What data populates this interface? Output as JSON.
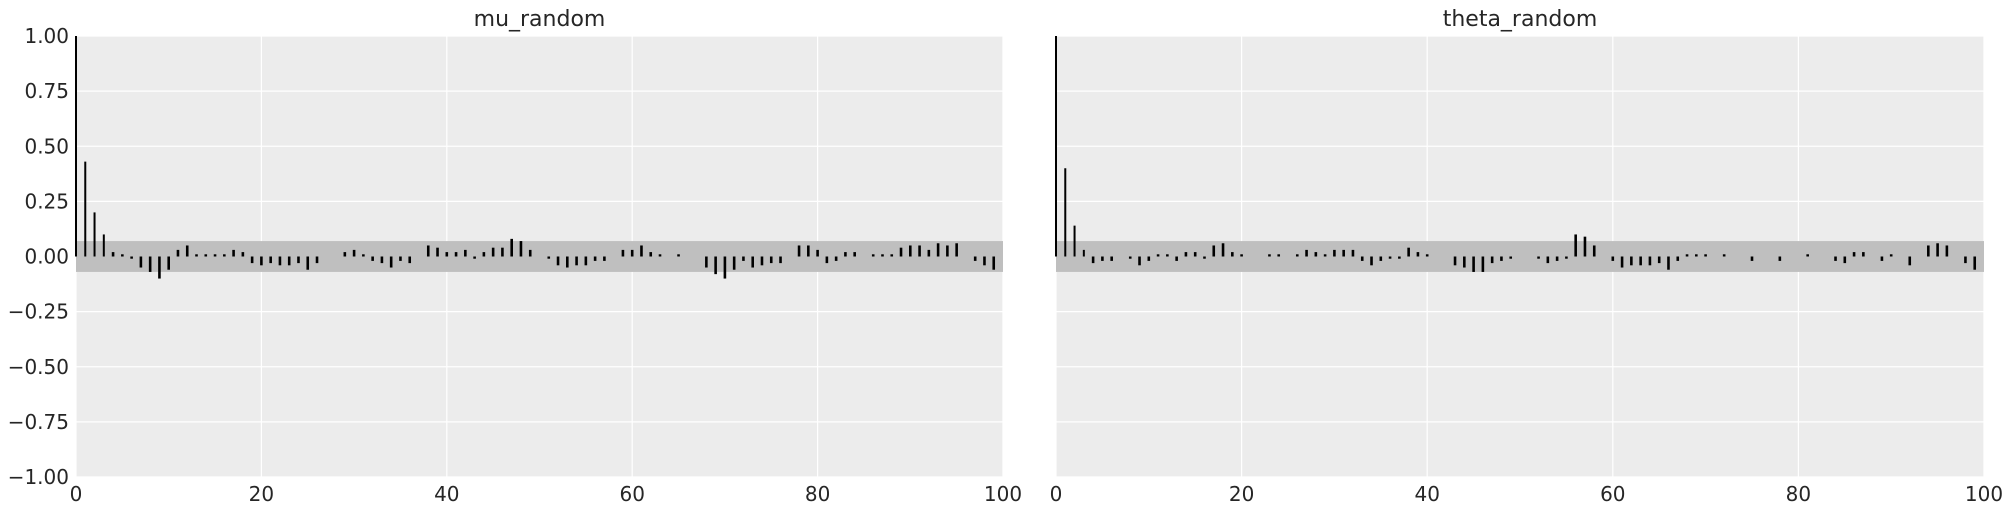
{
  "chart_data": [
    {
      "type": "bar",
      "title": "mu_random",
      "xlabel": "",
      "ylabel": "",
      "xlim": [
        0,
        100
      ],
      "ylim": [
        -1.0,
        1.0
      ],
      "xticks": [
        0,
        20,
        40,
        60,
        80,
        100
      ],
      "xtick_labels": [
        "0",
        "20",
        "40",
        "60",
        "80",
        "100"
      ],
      "yticks": [
        1.0,
        0.75,
        0.5,
        0.25,
        0.0,
        -0.25,
        -0.5,
        -0.75,
        -1.0
      ],
      "ytick_labels": [
        "1.00",
        "0.75",
        "0.50",
        "0.25",
        "0.00",
        "−0.25",
        "−0.50",
        "−0.75",
        "−1.00"
      ],
      "confidence_band": [
        -0.07,
        0.07
      ],
      "grid": true,
      "lags": [
        0,
        1,
        2,
        3,
        4,
        5,
        6,
        7,
        8,
        9,
        10,
        11,
        12,
        13,
        14,
        15,
        16,
        17,
        18,
        19,
        20,
        21,
        22,
        23,
        24,
        25,
        26,
        27,
        28,
        29,
        30,
        31,
        32,
        33,
        34,
        35,
        36,
        37,
        38,
        39,
        40,
        41,
        42,
        43,
        44,
        45,
        46,
        47,
        48,
        49,
        50,
        51,
        52,
        53,
        54,
        55,
        56,
        57,
        58,
        59,
        60,
        61,
        62,
        63,
        64,
        65,
        66,
        67,
        68,
        69,
        70,
        71,
        72,
        73,
        74,
        75,
        76,
        77,
        78,
        79,
        80,
        81,
        82,
        83,
        84,
        85,
        86,
        87,
        88,
        89,
        90,
        91,
        92,
        93,
        94,
        95,
        96,
        97,
        98,
        99
      ],
      "values": [
        1.0,
        0.43,
        0.2,
        0.1,
        0.02,
        0.01,
        -0.01,
        -0.05,
        -0.07,
        -0.1,
        -0.06,
        0.03,
        0.05,
        0.01,
        0.01,
        0.01,
        0.01,
        0.03,
        0.02,
        -0.03,
        -0.04,
        -0.03,
        -0.04,
        -0.04,
        -0.03,
        -0.06,
        -0.03,
        0.0,
        0.0,
        0.02,
        0.03,
        0.01,
        -0.02,
        -0.03,
        -0.05,
        -0.02,
        -0.03,
        0.0,
        0.05,
        0.04,
        0.02,
        0.02,
        0.03,
        -0.01,
        0.02,
        0.04,
        0.04,
        0.08,
        0.07,
        0.03,
        0.0,
        -0.01,
        -0.04,
        -0.05,
        -0.04,
        -0.04,
        -0.02,
        -0.02,
        0.0,
        0.03,
        0.03,
        0.05,
        0.02,
        0.01,
        0.0,
        0.01,
        0.0,
        0.0,
        -0.05,
        -0.08,
        -0.1,
        -0.06,
        -0.02,
        -0.05,
        -0.04,
        -0.03,
        -0.03,
        0.0,
        0.05,
        0.05,
        0.03,
        -0.03,
        -0.02,
        0.02,
        0.02,
        0.0,
        0.01,
        0.01,
        0.01,
        0.04,
        0.05,
        0.05,
        0.03,
        0.06,
        0.05,
        0.06,
        0.0,
        -0.02,
        -0.04,
        -0.06
      ]
    },
    {
      "type": "bar",
      "title": "theta_random",
      "xlabel": "",
      "ylabel": "",
      "xlim": [
        0,
        100
      ],
      "ylim": [
        -1.0,
        1.0
      ],
      "xticks": [
        0,
        20,
        40,
        60,
        80,
        100
      ],
      "xtick_labels": [
        "0",
        "20",
        "40",
        "60",
        "80",
        "100"
      ],
      "confidence_band": [
        -0.07,
        0.07
      ],
      "grid": true,
      "lags": [
        0,
        1,
        2,
        3,
        4,
        5,
        6,
        7,
        8,
        9,
        10,
        11,
        12,
        13,
        14,
        15,
        16,
        17,
        18,
        19,
        20,
        21,
        22,
        23,
        24,
        25,
        26,
        27,
        28,
        29,
        30,
        31,
        32,
        33,
        34,
        35,
        36,
        37,
        38,
        39,
        40,
        41,
        42,
        43,
        44,
        45,
        46,
        47,
        48,
        49,
        50,
        51,
        52,
        53,
        54,
        55,
        56,
        57,
        58,
        59,
        60,
        61,
        62,
        63,
        64,
        65,
        66,
        67,
        68,
        69,
        70,
        71,
        72,
        73,
        74,
        75,
        76,
        77,
        78,
        79,
        80,
        81,
        82,
        83,
        84,
        85,
        86,
        87,
        88,
        89,
        90,
        91,
        92,
        93,
        94,
        95,
        96,
        97,
        98,
        99
      ],
      "values": [
        1.0,
        0.4,
        0.14,
        0.03,
        -0.03,
        -0.02,
        -0.02,
        0.0,
        -0.01,
        -0.04,
        -0.02,
        0.01,
        0.01,
        -0.02,
        0.02,
        0.02,
        -0.01,
        0.05,
        0.06,
        0.02,
        0.01,
        0.0,
        0.0,
        0.01,
        0.01,
        0.0,
        0.01,
        0.03,
        0.02,
        0.01,
        0.03,
        0.03,
        0.03,
        -0.02,
        -0.04,
        -0.02,
        -0.01,
        -0.01,
        0.04,
        0.02,
        0.01,
        0.0,
        0.0,
        -0.04,
        -0.05,
        -0.07,
        -0.07,
        -0.03,
        -0.02,
        -0.01,
        0.0,
        0.0,
        -0.01,
        -0.03,
        -0.02,
        -0.01,
        0.1,
        0.09,
        0.05,
        0.0,
        -0.02,
        -0.05,
        -0.04,
        -0.04,
        -0.04,
        -0.03,
        -0.06,
        -0.02,
        0.01,
        0.01,
        0.01,
        0.0,
        0.01,
        0.0,
        0.0,
        -0.02,
        0.0,
        0.0,
        -0.02,
        0.0,
        0.0,
        0.01,
        0.0,
        0.0,
        -0.02,
        -0.03,
        0.02,
        0.02,
        0.0,
        -0.02,
        0.01,
        0.0,
        -0.04,
        0.0,
        0.05,
        0.06,
        0.05,
        0.0,
        -0.03,
        -0.06
      ]
    }
  ]
}
